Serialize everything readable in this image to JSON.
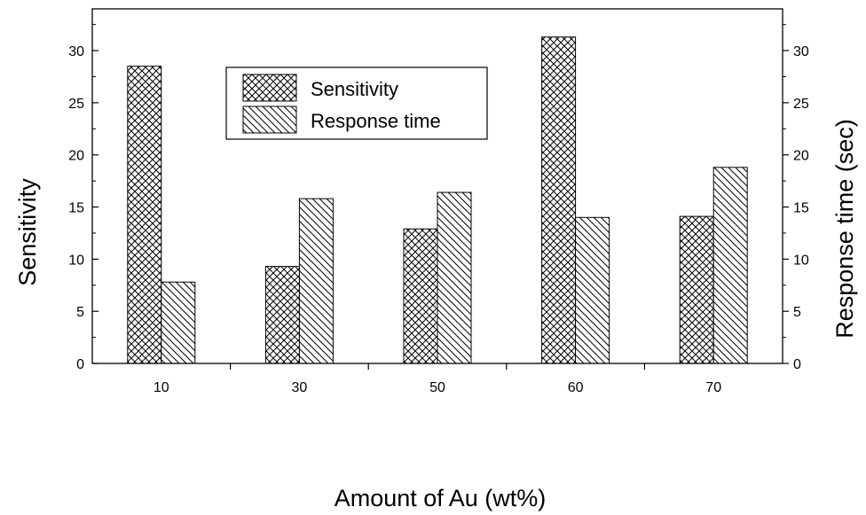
{
  "chart_data": {
    "type": "bar",
    "title": "",
    "categories": [
      "10",
      "30",
      "50",
      "60",
      "70"
    ],
    "series": [
      {
        "name": "Sensitivity",
        "values": [
          28.5,
          9.3,
          12.9,
          31.3,
          14.1
        ],
        "axis": "left",
        "pattern": "crosshatch"
      },
      {
        "name": "Response time",
        "values": [
          7.8,
          15.8,
          16.4,
          14.0,
          18.8
        ],
        "axis": "right",
        "pattern": "diagonal"
      }
    ],
    "xlabel": "Amount of Au (wt%)",
    "ylabel": "Sensitivity",
    "y2label": "Response time (sec)",
    "ylim": [
      0,
      34
    ],
    "y2lim": [
      0,
      34
    ],
    "yticks": [
      0,
      5,
      10,
      15,
      20,
      25,
      30
    ],
    "y2ticks": [
      0,
      5,
      10,
      15,
      20,
      25,
      30
    ],
    "grid": false,
    "legend_position": "top-center"
  }
}
